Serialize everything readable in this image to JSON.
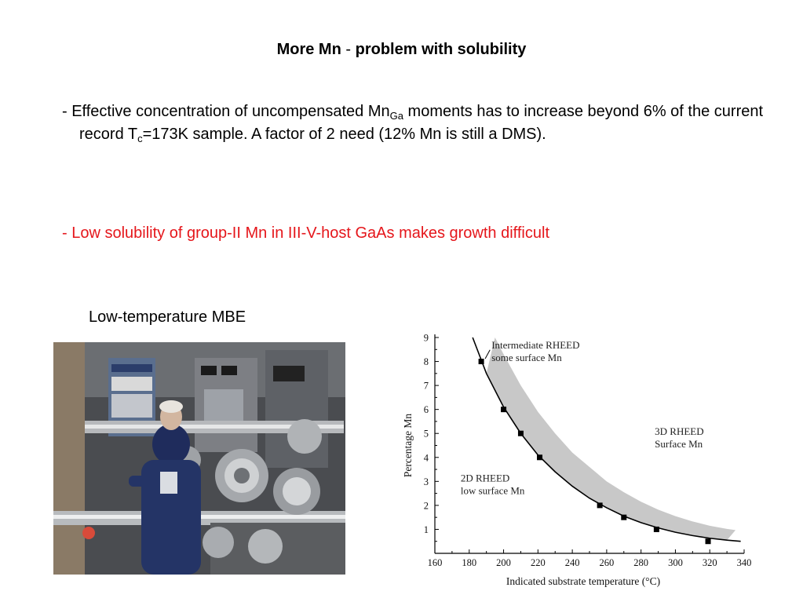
{
  "slide": {
    "title_part1": "More Mn",
    "title_sep": "-",
    "title_part2": "problem with solubility",
    "bullet1": {
      "prefix": "- Effective concentration of uncompensated Mn",
      "sub_ga": "Ga",
      "mid": " moments has to increase beyond 6% of the current record T",
      "sub_c": "c",
      "suffix": "=173K sample. A factor of 2 need (12% Mn is still a DMS)."
    },
    "bullet2": "- Low solubility of group-II Mn in III-V-host GaAs makes growth difficult",
    "photo_caption": "Low-temperature MBE",
    "colors": {
      "bullet2": "#e5161b",
      "band": "#c8c8c8"
    }
  },
  "chart_data": {
    "type": "scatter",
    "title": "",
    "xlabel": "Indicated substrate  temperature (°C)",
    "ylabel": "Percentage Mn",
    "xlim": [
      160,
      340
    ],
    "ylim": [
      0,
      9
    ],
    "xticks": [
      160,
      180,
      200,
      220,
      240,
      260,
      280,
      300,
      320,
      340
    ],
    "yticks": [
      1,
      2,
      3,
      4,
      5,
      6,
      7,
      8,
      9
    ],
    "grid": false,
    "points": [
      {
        "x": 187,
        "y": 8.0
      },
      {
        "x": 200,
        "y": 6.0
      },
      {
        "x": 210,
        "y": 5.0
      },
      {
        "x": 221,
        "y": 4.0
      },
      {
        "x": 256,
        "y": 2.0
      },
      {
        "x": 270,
        "y": 1.5
      },
      {
        "x": 289,
        "y": 1.0
      },
      {
        "x": 319,
        "y": 0.5
      }
    ],
    "fit_curve": [
      {
        "x": 182,
        "y": 9.0
      },
      {
        "x": 190,
        "y": 7.5
      },
      {
        "x": 200,
        "y": 6.1
      },
      {
        "x": 210,
        "y": 5.0
      },
      {
        "x": 220,
        "y": 4.1
      },
      {
        "x": 230,
        "y": 3.4
      },
      {
        "x": 240,
        "y": 2.8
      },
      {
        "x": 250,
        "y": 2.3
      },
      {
        "x": 260,
        "y": 1.9
      },
      {
        "x": 270,
        "y": 1.55
      },
      {
        "x": 280,
        "y": 1.28
      },
      {
        "x": 290,
        "y": 1.06
      },
      {
        "x": 300,
        "y": 0.88
      },
      {
        "x": 310,
        "y": 0.74
      },
      {
        "x": 320,
        "y": 0.63
      },
      {
        "x": 330,
        "y": 0.55
      },
      {
        "x": 338,
        "y": 0.5
      }
    ],
    "band_upper": [
      {
        "x": 195,
        "y": 9.0
      },
      {
        "x": 200,
        "y": 8.3
      },
      {
        "x": 210,
        "y": 7.0
      },
      {
        "x": 220,
        "y": 5.9
      },
      {
        "x": 230,
        "y": 5.0
      },
      {
        "x": 240,
        "y": 4.2
      },
      {
        "x": 250,
        "y": 3.6
      },
      {
        "x": 260,
        "y": 3.0
      },
      {
        "x": 270,
        "y": 2.55
      },
      {
        "x": 280,
        "y": 2.15
      },
      {
        "x": 290,
        "y": 1.82
      },
      {
        "x": 300,
        "y": 1.55
      },
      {
        "x": 310,
        "y": 1.33
      },
      {
        "x": 320,
        "y": 1.15
      },
      {
        "x": 330,
        "y": 1.02
      },
      {
        "x": 335,
        "y": 0.97
      }
    ],
    "annotations": [
      {
        "line1": "Intermediate RHEED",
        "line2": "some surface Mn",
        "x": 193,
        "y": 8.55,
        "arrow_to": {
          "x": 187,
          "y": 8.05
        }
      },
      {
        "line1": "3D RHEED",
        "line2": "Surface Mn",
        "x": 288,
        "y": 4.95
      },
      {
        "line1": "2D RHEED",
        "line2": "low surface Mn",
        "x": 175,
        "y": 3.0
      }
    ]
  }
}
